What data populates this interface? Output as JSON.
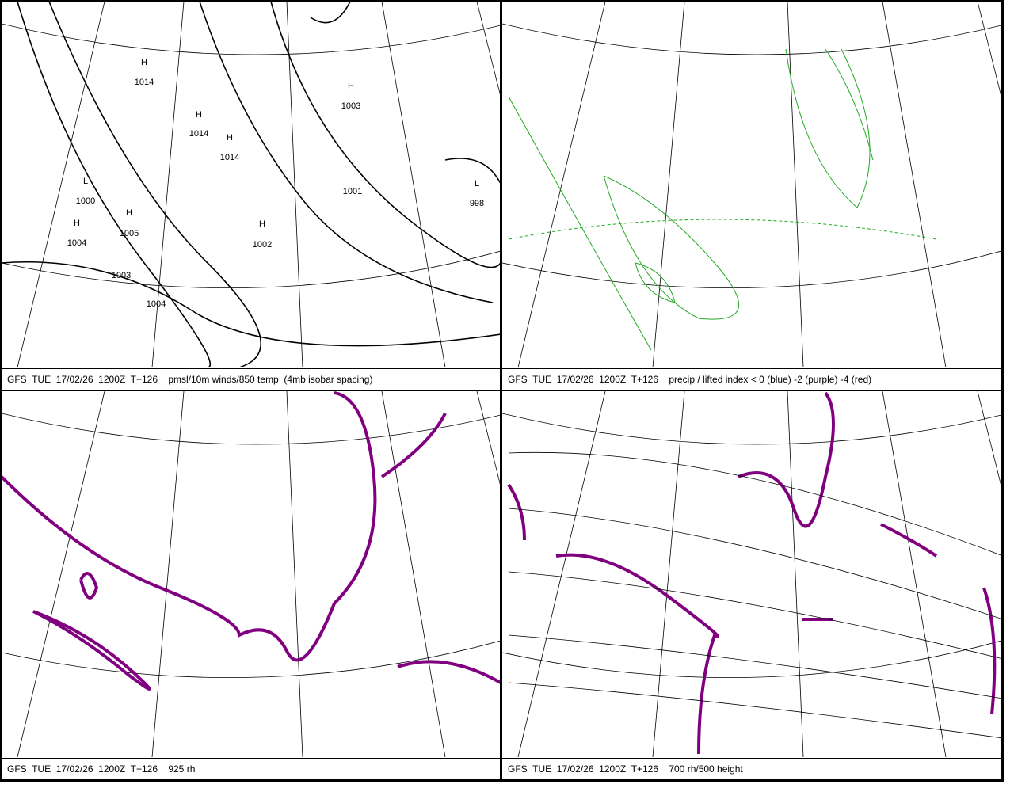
{
  "panels": [
    {
      "caption": "GFS  TUE  17/02/26  1200Z  T+126    pmsl/10m winds/850 temp  (4mb isobar spacing)",
      "labels": [
        {
          "symbol": "H",
          "value": 1014
        },
        {
          "symbol": "H",
          "value": 1014
        },
        {
          "symbol": "H",
          "value": 1014
        },
        {
          "symbol": "H",
          "value": 1003
        },
        {
          "symbol": "L",
          "value": 1000
        },
        {
          "symbol": "H",
          "value": 1005
        },
        {
          "symbol": "H",
          "value": 1004
        },
        {
          "symbol": "H",
          "value": 1002
        },
        {
          "symbol": "L",
          "value": 998
        },
        {
          "value": 1003
        },
        {
          "value": 1004
        },
        {
          "value": 1001
        }
      ]
    },
    {
      "caption": "GFS  TUE  17/02/26  1200Z  T+126    precip / lifted index < 0 (blue) -2 (purple) -4 (red)"
    },
    {
      "caption": "GFS  TUE  17/02/26  1200Z  T+126    925 rh"
    },
    {
      "caption": "GFS  TUE  17/02/26  1200Z  T+126    700 rh/500 height"
    }
  ]
}
